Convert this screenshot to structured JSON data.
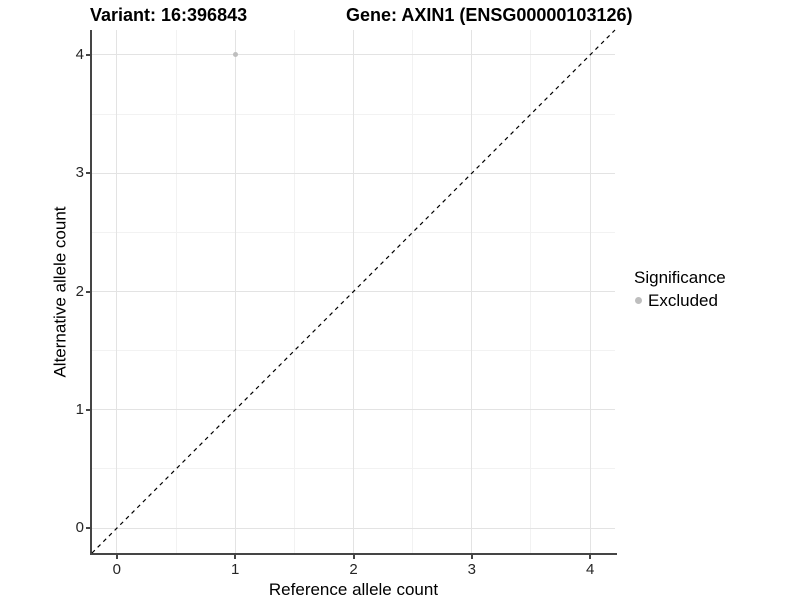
{
  "chart_data": {
    "type": "scatter",
    "title_left": "Variant: 16:396843",
    "title_right": "Gene: AXIN1 (ENSG00000103126)",
    "xlabel": "Reference allele count",
    "ylabel": "Alternative allele count",
    "xlim": [
      -0.21,
      4.21
    ],
    "ylim": [
      -0.21,
      4.21
    ],
    "x_ticks": [
      0,
      1,
      2,
      3,
      4
    ],
    "y_ticks": [
      0,
      1,
      2,
      3,
      4
    ],
    "minor_ticks": [
      0.5,
      1.5,
      2.5,
      3.5
    ],
    "grid": "major+minor",
    "legend": {
      "title": "Significance",
      "position": "right",
      "entries": [
        {
          "label": "Excluded",
          "color": "#bebebe"
        }
      ]
    },
    "series": [
      {
        "name": "Excluded",
        "color": "#bebebe",
        "points": [
          {
            "x": 1,
            "y": 4
          }
        ]
      }
    ],
    "reference_line": {
      "kind": "identity",
      "style": "dashed",
      "color": "#000000"
    },
    "colors": {
      "grid_major": "#e3e3e3",
      "grid_minor": "#f2f2f2",
      "axis_line": "#454545",
      "tick_label": "#262626"
    }
  }
}
